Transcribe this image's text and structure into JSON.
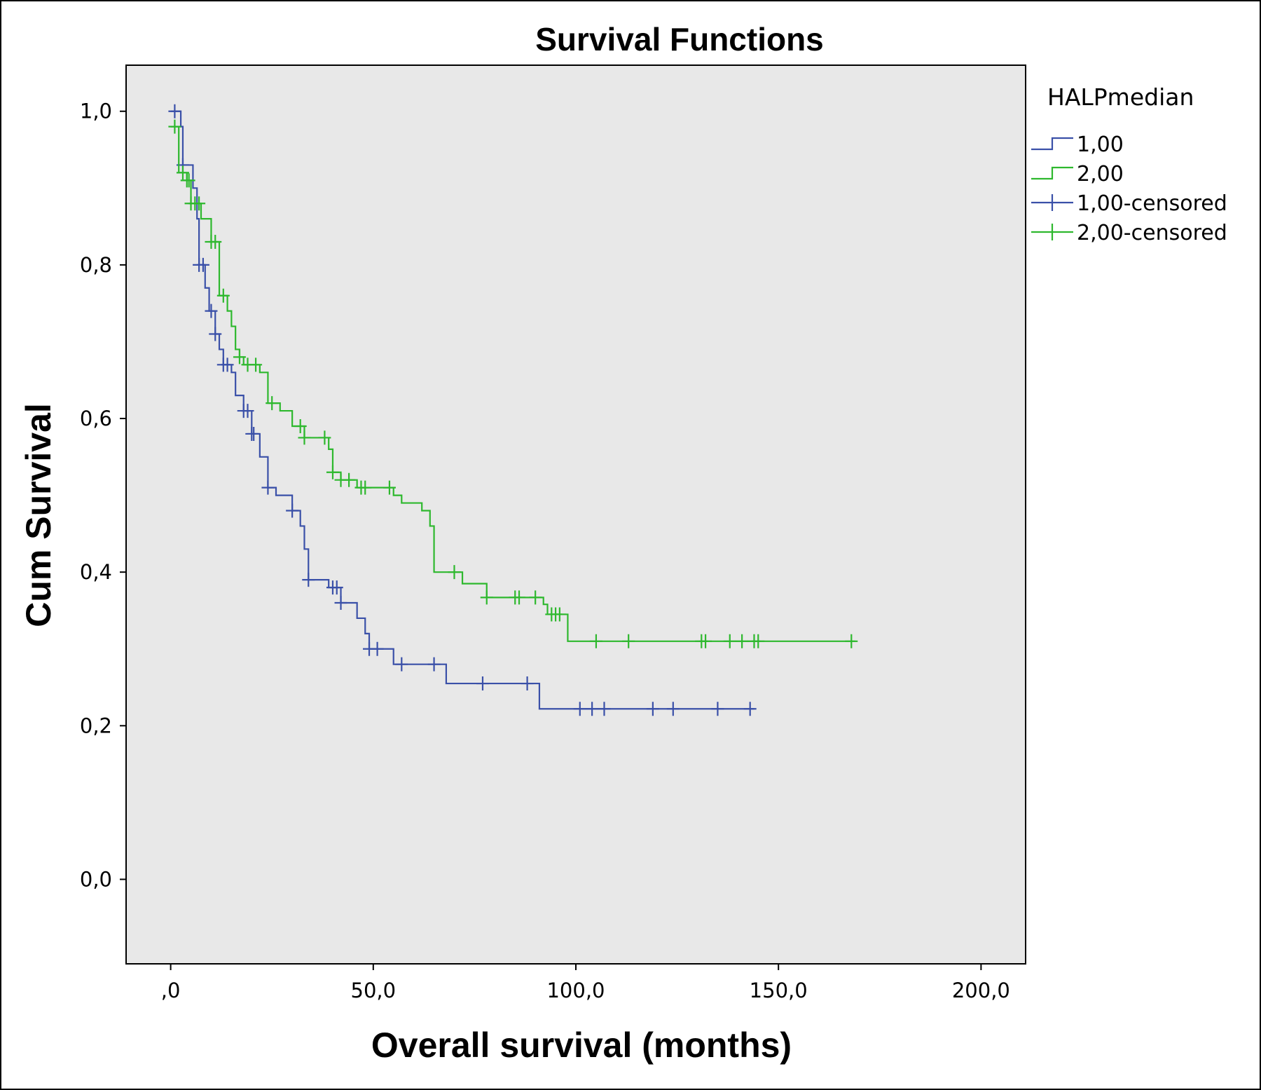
{
  "chart_data": {
    "type": "line",
    "subtype": "kaplan-meier",
    "title": "Survival Functions",
    "xlabel": "Overall survival (months)",
    "ylabel": "Cum Survival",
    "xlim": [
      -11,
      211
    ],
    "ylim": [
      -0.11,
      1.06
    ],
    "x_ticks": [
      0,
      50,
      100,
      150,
      200
    ],
    "x_tick_labels": [
      ",0",
      "50,0",
      "100,0",
      "150,0",
      "200,0"
    ],
    "y_ticks": [
      0,
      0.2,
      0.4,
      0.6,
      0.8,
      1.0
    ],
    "y_tick_labels": [
      "0,0",
      "0,2",
      "0,4",
      "0,6",
      "0,8",
      "1,0"
    ],
    "grid": false,
    "plot_background": "#e8e8e8",
    "legend": {
      "title": "HALPmedian",
      "position": "right",
      "entries": [
        {
          "label": "1,00",
          "kind": "step",
          "color": "#3a50a8"
        },
        {
          "label": "2,00",
          "kind": "step",
          "color": "#2eb82e"
        },
        {
          "label": "1,00-censored",
          "kind": "censor",
          "color": "#3a50a8"
        },
        {
          "label": "2,00-censored",
          "kind": "censor",
          "color": "#2eb82e"
        }
      ]
    },
    "series": [
      {
        "name": "1,00",
        "color": "#3a50a8",
        "steps": [
          [
            0,
            1.0
          ],
          [
            2.5,
            0.98
          ],
          [
            3,
            0.93
          ],
          [
            5.5,
            0.9
          ],
          [
            6.5,
            0.86
          ],
          [
            7,
            0.8
          ],
          [
            8.5,
            0.77
          ],
          [
            9.5,
            0.74
          ],
          [
            11,
            0.71
          ],
          [
            12,
            0.69
          ],
          [
            13,
            0.67
          ],
          [
            15,
            0.66
          ],
          [
            16,
            0.63
          ],
          [
            18,
            0.61
          ],
          [
            20,
            0.58
          ],
          [
            22,
            0.55
          ],
          [
            24,
            0.51
          ],
          [
            26,
            0.5
          ],
          [
            30,
            0.48
          ],
          [
            32,
            0.46
          ],
          [
            33,
            0.43
          ],
          [
            34,
            0.39
          ],
          [
            39,
            0.38
          ],
          [
            42,
            0.36
          ],
          [
            46,
            0.34
          ],
          [
            48,
            0.32
          ],
          [
            49,
            0.3
          ],
          [
            55,
            0.28
          ],
          [
            68,
            0.255
          ],
          [
            91,
            0.222
          ]
        ],
        "end_x": 144,
        "censored_x": [
          1,
          3,
          7,
          8,
          10,
          11,
          13,
          14,
          18,
          19,
          20,
          20.5,
          24,
          30,
          34,
          40,
          41,
          42,
          49,
          51,
          57,
          65,
          77,
          88,
          101,
          104,
          107,
          119,
          124,
          135,
          143
        ]
      },
      {
        "name": "2,00",
        "color": "#2eb82e",
        "steps": [
          [
            0,
            0.98
          ],
          [
            2,
            0.92
          ],
          [
            4,
            0.91
          ],
          [
            5,
            0.88
          ],
          [
            7.5,
            0.86
          ],
          [
            10,
            0.83
          ],
          [
            12,
            0.76
          ],
          [
            14,
            0.74
          ],
          [
            15,
            0.72
          ],
          [
            16,
            0.69
          ],
          [
            17,
            0.68
          ],
          [
            18,
            0.67
          ],
          [
            22,
            0.66
          ],
          [
            24,
            0.62
          ],
          [
            27,
            0.61
          ],
          [
            30,
            0.59
          ],
          [
            33,
            0.575
          ],
          [
            39,
            0.56
          ],
          [
            40,
            0.53
          ],
          [
            42,
            0.52
          ],
          [
            46,
            0.51
          ],
          [
            55,
            0.5
          ],
          [
            57,
            0.49
          ],
          [
            62,
            0.48
          ],
          [
            64,
            0.46
          ],
          [
            65,
            0.4
          ],
          [
            72,
            0.385
          ],
          [
            78,
            0.367
          ],
          [
            92,
            0.358
          ],
          [
            93,
            0.345
          ],
          [
            98,
            0.31
          ]
        ],
        "end_x": 169,
        "censored_x": [
          1,
          3,
          4,
          4.5,
          5,
          6,
          7,
          10,
          11,
          13,
          17,
          19,
          21,
          25,
          32,
          33,
          38,
          40,
          42,
          44,
          47,
          48,
          54,
          70,
          78,
          85,
          86,
          90,
          94,
          95,
          96,
          105,
          113,
          131,
          132,
          138,
          141,
          144,
          145,
          168
        ]
      }
    ]
  }
}
